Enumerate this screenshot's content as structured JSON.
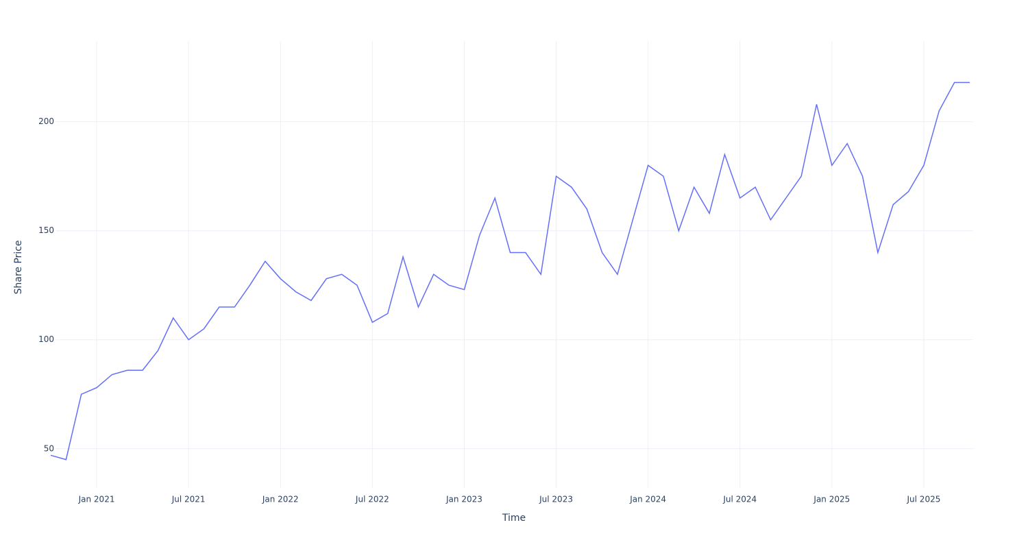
{
  "chart_data": {
    "type": "line",
    "x_label": "Time",
    "y_label": "Share Price",
    "x": [
      "2020-10",
      "2020-11",
      "2020-12",
      "2021-01",
      "2021-02",
      "2021-03",
      "2021-04",
      "2021-05",
      "2021-06",
      "2021-07",
      "2021-08",
      "2021-09",
      "2021-10",
      "2021-11",
      "2021-12",
      "2022-01",
      "2022-02",
      "2022-03",
      "2022-04",
      "2022-05",
      "2022-06",
      "2022-07",
      "2022-08",
      "2022-09",
      "2022-10",
      "2022-11",
      "2022-12",
      "2023-01",
      "2023-02",
      "2023-03",
      "2023-04",
      "2023-05",
      "2023-06",
      "2023-07",
      "2023-08",
      "2023-09",
      "2023-10",
      "2023-11",
      "2023-12",
      "2024-01",
      "2024-02",
      "2024-03",
      "2024-04",
      "2024-05",
      "2024-06",
      "2024-07",
      "2024-08",
      "2024-09",
      "2024-10",
      "2024-11",
      "2024-12",
      "2025-01",
      "2025-02",
      "2025-03",
      "2025-04",
      "2025-05",
      "2025-06",
      "2025-07",
      "2025-08",
      "2025-09",
      "2025-10"
    ],
    "series": [
      {
        "name": "Share Price",
        "color": "#636efa",
        "values": [
          47,
          45,
          75,
          78,
          84,
          86,
          86,
          95,
          110,
          100,
          105,
          115,
          115,
          125,
          136,
          128,
          122,
          118,
          128,
          130,
          125,
          108,
          112,
          138,
          115,
          130,
          125,
          123,
          148,
          165,
          140,
          140,
          130,
          175,
          170,
          160,
          140,
          130,
          155,
          180,
          175,
          150,
          170,
          158,
          185,
          165,
          170,
          155,
          165,
          175,
          208,
          180,
          190,
          175,
          140,
          162,
          168,
          180,
          205,
          218,
          218
        ]
      }
    ],
    "xlim": [
      "2020-10",
      "2025-10"
    ],
    "ylim": [
      32,
      237
    ],
    "xticks": [
      {
        "value": "2021-01",
        "label": "Jan 2021"
      },
      {
        "value": "2021-07",
        "label": "Jul 2021"
      },
      {
        "value": "2022-01",
        "label": "Jan 2022"
      },
      {
        "value": "2022-07",
        "label": "Jul 2022"
      },
      {
        "value": "2023-01",
        "label": "Jan 2023"
      },
      {
        "value": "2023-07",
        "label": "Jul 2023"
      },
      {
        "value": "2024-01",
        "label": "Jan 2024"
      },
      {
        "value": "2024-07",
        "label": "Jul 2024"
      },
      {
        "value": "2025-01",
        "label": "Jan 2025"
      },
      {
        "value": "2025-07",
        "label": "Jul 2025"
      }
    ],
    "yticks": [
      50,
      100,
      150,
      200
    ],
    "grid": true
  }
}
